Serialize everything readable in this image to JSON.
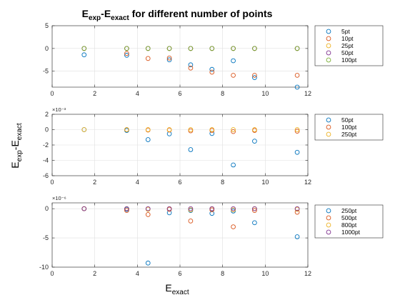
{
  "figure": {
    "title_main": "E",
    "title_sub1": "exp",
    "title_dash": "-E",
    "title_sub2": "exact",
    "title_rest": " for different number of points",
    "ylabel_main": "E",
    "ylabel_sub1": "exp",
    "ylabel_dash": "-E",
    "ylabel_sub2": "exact",
    "xlabel_main": "E",
    "xlabel_sub": "exact"
  },
  "colors": {
    "blue": "#0072BD",
    "orange": "#D95319",
    "yellow": "#EDB120",
    "purple": "#7E2F8E",
    "green": "#77AC30"
  },
  "chart_data": [
    {
      "type": "scatter",
      "title": "E_exp-E_exact for different number of points",
      "xlim": [
        0,
        12
      ],
      "ylim": [
        -8.5,
        5
      ],
      "xticks": [
        0,
        2,
        4,
        6,
        8,
        10,
        12
      ],
      "yticks": [
        5,
        0,
        -5
      ],
      "exponent_label": "",
      "grid": true,
      "legend_placement": "outside-right",
      "series": [
        {
          "name": "5pt",
          "color": "#0072BD",
          "x": [
            1.5,
            3.5,
            5.5,
            6.5,
            7.5,
            8.5,
            9.5,
            11.5
          ],
          "y": [
            -1.4,
            -1.5,
            -2.5,
            -3.6,
            -4.6,
            -2.7,
            -6.4,
            -8.5
          ]
        },
        {
          "name": "10pt",
          "color": "#D95319",
          "x": [
            3.5,
            4.5,
            5.5,
            6.5,
            7.5,
            8.5,
            9.5,
            11.5
          ],
          "y": [
            -1.1,
            -2.2,
            -2.1,
            -4.3,
            -5.2,
            -5.9,
            -5.9,
            -5.9
          ]
        },
        {
          "name": "25pt",
          "color": "#EDB120",
          "x": [
            1.5,
            3.5,
            4.5,
            5.5,
            6.5,
            7.5,
            8.5,
            9.5,
            11.5
          ],
          "y": [
            0,
            0,
            0,
            0,
            0,
            0,
            0,
            0,
            0
          ]
        },
        {
          "name": "50pt",
          "color": "#7E2F8E",
          "x": [
            1.5,
            3.5,
            4.5,
            5.5,
            6.5,
            7.5,
            8.5,
            9.5,
            11.5
          ],
          "y": [
            0,
            0,
            0,
            0,
            0,
            0,
            0,
            0,
            0
          ]
        },
        {
          "name": "100pt",
          "color": "#77AC30",
          "x": [
            1.5,
            3.5,
            4.5,
            5.5,
            6.5,
            7.5,
            8.5,
            9.5,
            11.5
          ],
          "y": [
            0,
            0,
            0,
            0,
            0,
            0,
            0,
            0,
            0
          ]
        }
      ]
    },
    {
      "type": "scatter",
      "xlim": [
        0,
        12
      ],
      "ylim": [
        -6,
        2
      ],
      "xticks": [
        0,
        2,
        4,
        6,
        8,
        10,
        12
      ],
      "yticks": [
        2,
        0,
        -2,
        -4,
        -6
      ],
      "exponent_label": "×10⁻³",
      "grid": true,
      "legend_placement": "outside-right",
      "series": [
        {
          "name": "50pt",
          "color": "#0072BD",
          "x": [
            1.5,
            3.5,
            4.5,
            5.5,
            6.5,
            7.5,
            8.5,
            9.5,
            11.5
          ],
          "y": [
            0,
            -0.1,
            -1.3,
            -0.55,
            -2.6,
            -0.5,
            -4.6,
            -1.5,
            -2.95
          ]
        },
        {
          "name": "100pt",
          "color": "#D95319",
          "x": [
            3.5,
            4.5,
            5.5,
            6.5,
            7.5,
            8.5,
            9.5,
            11.5
          ],
          "y": [
            0,
            -0.05,
            -0.05,
            -0.15,
            -0.1,
            -0.25,
            -0.1,
            -0.2
          ]
        },
        {
          "name": "250pt",
          "color": "#EDB120",
          "x": [
            1.5,
            3.5,
            4.5,
            5.5,
            6.5,
            7.5,
            8.5,
            9.5,
            11.5
          ],
          "y": [
            0,
            0,
            0,
            0,
            0,
            0,
            0,
            0,
            0
          ]
        }
      ]
    },
    {
      "type": "scatter",
      "xlim": [
        0,
        12
      ],
      "ylim": [
        -10,
        1
      ],
      "xticks": [
        0,
        2,
        4,
        6,
        8,
        10,
        12
      ],
      "yticks": [
        0,
        -5,
        -10
      ],
      "exponent_label": "×10⁻⁶",
      "grid": true,
      "legend_placement": "outside-right",
      "series": [
        {
          "name": "250pt",
          "color": "#0072BD",
          "x": [
            1.5,
            3.5,
            4.5,
            5.5,
            6.5,
            7.5,
            8.5,
            9.5,
            11.5
          ],
          "y": [
            0,
            -0.1,
            -9.3,
            -0.7,
            -0.3,
            -0.8,
            -0.4,
            -2.4,
            -4.8
          ]
        },
        {
          "name": "500pt",
          "color": "#D95319",
          "x": [
            1.5,
            3.5,
            4.5,
            5.5,
            6.5,
            7.5,
            8.5,
            9.5,
            11.5
          ],
          "y": [
            0,
            -0.3,
            -1.0,
            -0.1,
            -2.1,
            -0.2,
            -3.1,
            -0.3,
            -0.6
          ]
        },
        {
          "name": "800pt",
          "color": "#EDB120",
          "x": [
            1.5,
            3.5,
            4.5,
            5.5,
            6.5,
            7.5,
            8.5,
            9.5,
            11.5
          ],
          "y": [
            0,
            0,
            -0.1,
            0,
            -0.2,
            0,
            -0.2,
            0,
            -0.1
          ]
        },
        {
          "name": "1000pt",
          "color": "#7E2F8E",
          "x": [
            1.5,
            3.5,
            4.5,
            5.5,
            6.5,
            7.5,
            8.5,
            9.5,
            11.5
          ],
          "y": [
            0,
            0,
            0,
            0,
            0,
            0,
            0,
            0,
            0
          ]
        }
      ]
    }
  ]
}
